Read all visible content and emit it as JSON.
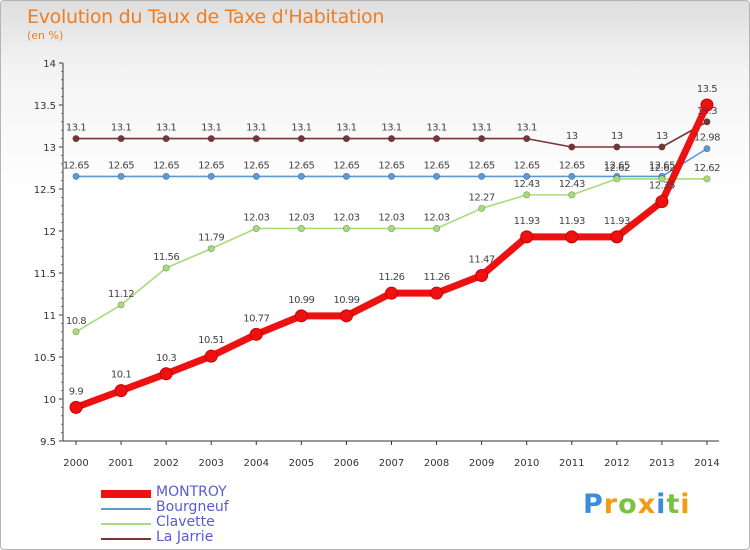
{
  "header": {
    "title": "Evolution du Taux de Taxe d'Habitation",
    "subtitle": "(en %)"
  },
  "chart_data": {
    "type": "line",
    "title": "Evolution du Taux de Taxe d'Habitation",
    "ylabel": "(en %)",
    "xlabel": "",
    "x": [
      "2000",
      "2001",
      "2002",
      "2003",
      "2004",
      "2005",
      "2006",
      "2007",
      "2008",
      "2009",
      "2010",
      "2011",
      "2012",
      "2013",
      "2014"
    ],
    "ylim": [
      9.5,
      14
    ],
    "yticks": [
      "9.5",
      "10",
      "10.5",
      "11",
      "11.5",
      "12",
      "12.5",
      "13",
      "13.5",
      "14"
    ],
    "grid": false,
    "legend": "bottom-left",
    "series": [
      {
        "name": "La Jarrie",
        "color": "#7b3434",
        "values": [
          13.1,
          13.1,
          13.1,
          13.1,
          13.1,
          13.1,
          13.1,
          13.1,
          13.1,
          13.1,
          13.1,
          13,
          13,
          13,
          13.3
        ],
        "labels": [
          "13.1",
          "13.1",
          "13.1",
          "13.1",
          "13.1",
          "13.1",
          "13.1",
          "13.1",
          "13.1",
          "13.1",
          "13.1",
          "13",
          "13",
          "13",
          "13.3"
        ]
      },
      {
        "name": "Bourgneuf",
        "color": "#5b9bd5",
        "values": [
          12.65,
          12.65,
          12.65,
          12.65,
          12.65,
          12.65,
          12.65,
          12.65,
          12.65,
          12.65,
          12.65,
          12.65,
          12.65,
          12.65,
          12.98
        ],
        "labels": [
          "12.65",
          "12.65",
          "12.65",
          "12.65",
          "12.65",
          "12.65",
          "12.65",
          "12.65",
          "12.65",
          "12.65",
          "12.65",
          "12.65",
          "12.65",
          "12.65",
          "12.98"
        ]
      },
      {
        "name": "Clavette",
        "color": "#a6dd7a",
        "values": [
          10.8,
          11.12,
          11.56,
          11.79,
          12.03,
          12.03,
          12.03,
          12.03,
          12.03,
          12.27,
          12.43,
          12.43,
          12.62,
          12.62,
          12.62
        ],
        "labels": [
          "10.8",
          "11.12",
          "11.56",
          "11.79",
          "12.03",
          "12.03",
          "12.03",
          "12.03",
          "12.03",
          "12.27",
          "12.43",
          "12.43",
          "12.62",
          "12.62",
          "12.62"
        ]
      },
      {
        "name": "MONTROY",
        "color": "#ee1111",
        "values": [
          9.9,
          10.1,
          10.3,
          10.51,
          10.77,
          10.99,
          10.99,
          11.26,
          11.26,
          11.47,
          11.93,
          11.93,
          11.93,
          12.35,
          13.5
        ],
        "labels": [
          "9.9",
          "10.1",
          "10.3",
          "10.51",
          "10.77",
          "10.99",
          "10.99",
          "11.26",
          "11.26",
          "11.47",
          "11.93",
          "11.93",
          "11.93",
          "12.35",
          "13.5"
        ]
      }
    ]
  },
  "legend": {
    "items": [
      {
        "name": "MONTROY",
        "color": "#ee1111",
        "weight": 8
      },
      {
        "name": "Bourgneuf",
        "color": "#5b9bd5",
        "weight": 2
      },
      {
        "name": "Clavette",
        "color": "#a6dd7a",
        "weight": 2
      },
      {
        "name": "La Jarrie",
        "color": "#7b3434",
        "weight": 2
      }
    ]
  },
  "brand": {
    "letters": [
      "P",
      "r",
      "o",
      "x",
      "i",
      "t",
      "i"
    ],
    "colors": [
      "#3a8dd6",
      "#f39c12",
      "#7cc242",
      "#f39c12",
      "#3a8dd6",
      "#7cc242",
      "#f39c12"
    ]
  }
}
